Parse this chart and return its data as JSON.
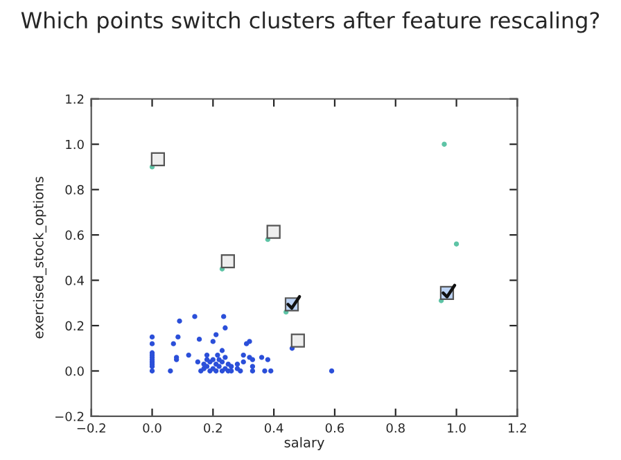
{
  "chart_data": {
    "type": "scatter",
    "title": "Which points switch clusters after feature rescaling?",
    "xlabel": "salary",
    "ylabel": "exercised_stock_options",
    "xlim": [
      -0.2,
      1.2
    ],
    "ylim": [
      -0.2,
      1.2
    ],
    "xticks": [
      {
        "value": -0.2,
        "label": "−0.2"
      },
      {
        "value": 0.0,
        "label": "0.0"
      },
      {
        "value": 0.2,
        "label": "0.2"
      },
      {
        "value": 0.4,
        "label": "0.4"
      },
      {
        "value": 0.6,
        "label": "0.6"
      },
      {
        "value": 0.8,
        "label": "0.8"
      },
      {
        "value": 1.0,
        "label": "1.0"
      },
      {
        "value": 1.2,
        "label": "1.2"
      }
    ],
    "yticks": [
      {
        "value": -0.2,
        "label": "−0.2"
      },
      {
        "value": 0.0,
        "label": "0.0"
      },
      {
        "value": 0.2,
        "label": "0.2"
      },
      {
        "value": 0.4,
        "label": "0.4"
      },
      {
        "value": 0.6,
        "label": "0.6"
      },
      {
        "value": 0.8,
        "label": "0.8"
      },
      {
        "value": 1.0,
        "label": "1.0"
      },
      {
        "value": 1.2,
        "label": "1.2"
      }
    ],
    "grid": false,
    "legend": false,
    "marker": "circle",
    "series": [
      {
        "color": "#2b4fd9",
        "x": [
          0,
          0,
          0,
          0,
          0,
          0,
          0,
          0,
          0,
          0,
          0.06,
          0.07,
          0.08,
          0.08,
          0.085,
          0.09,
          0.12,
          0.14,
          0.15,
          0.155,
          0.18,
          0.2,
          0.21,
          0.235,
          0.24,
          0.23,
          0.215,
          0.16,
          0.17,
          0.18,
          0.19,
          0.19,
          0.2,
          0.2,
          0.21,
          0.21,
          0.22,
          0.22,
          0.23,
          0.23,
          0.24,
          0.24,
          0.25,
          0.25,
          0.26,
          0.26,
          0.18,
          0.17,
          0.28,
          0.28,
          0.29,
          0.3,
          0.3,
          0.31,
          0.32,
          0.32,
          0.33,
          0.33,
          0.33,
          0.36,
          0.37,
          0.38,
          0.39,
          0.46,
          0.59
        ],
        "values": [
          0.15,
          0.12,
          0.08,
          0.06,
          0.04,
          0.02,
          0.0,
          0.05,
          0.03,
          0.07,
          0.0,
          0.12,
          0.05,
          0.06,
          0.15,
          0.22,
          0.07,
          0.24,
          0.04,
          0.14,
          0.07,
          0.13,
          0.16,
          0.24,
          0.19,
          0.09,
          0.07,
          0.0,
          0.01,
          0.02,
          0.0,
          0.04,
          0.01,
          0.05,
          0.0,
          0.03,
          0.02,
          0.05,
          0.0,
          0.04,
          0.01,
          0.06,
          0.0,
          0.03,
          0.02,
          0.0,
          0.05,
          0.03,
          0.01,
          0.03,
          0.0,
          0.04,
          0.07,
          0.12,
          0.13,
          0.06,
          0.05,
          0.02,
          0.0,
          0.06,
          0.0,
          0.05,
          0.0,
          0.1,
          0.0
        ]
      },
      {
        "color": "#5ec4a6",
        "x": [
          0.0,
          0.23,
          0.38,
          0.44,
          0.96,
          1.0,
          0.95
        ],
        "values": [
          0.9,
          0.45,
          0.58,
          0.26,
          1.0,
          0.56,
          0.31
        ]
      }
    ]
  }
}
